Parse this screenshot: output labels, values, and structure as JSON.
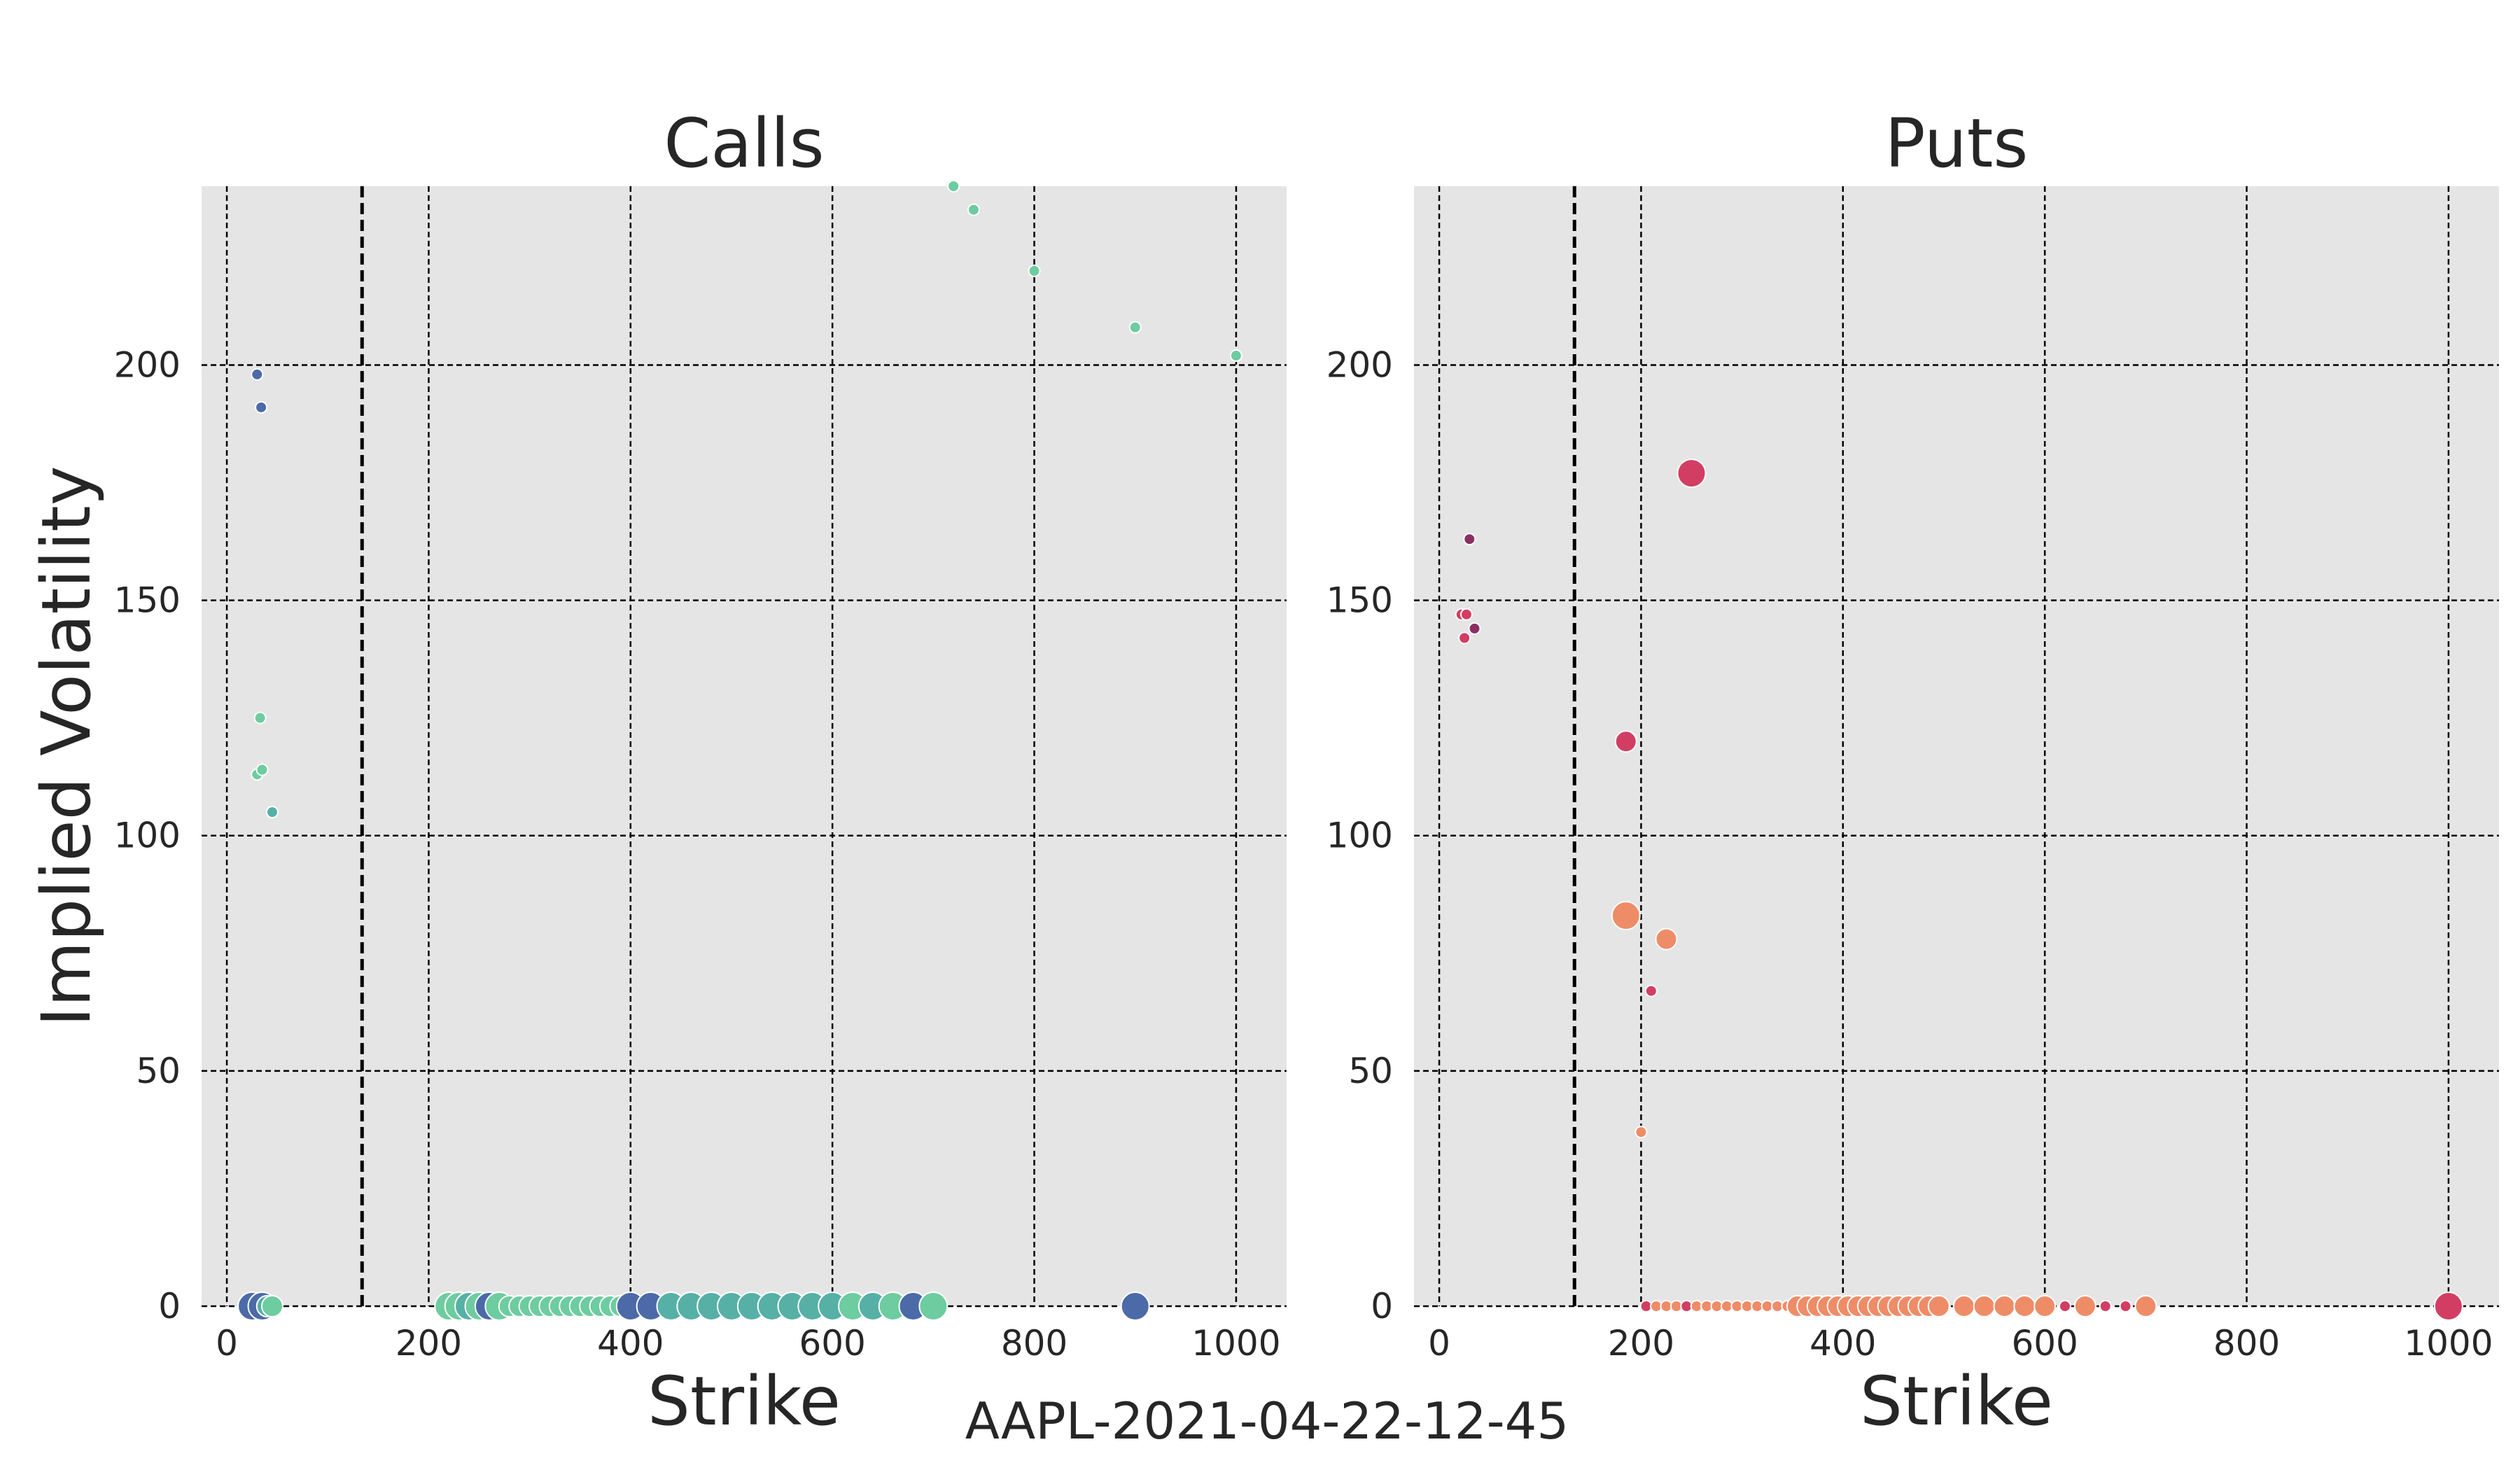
{
  "figure": {
    "caption": "AAPL-2021-04-22-12-45",
    "ylabel": "Implied Volatility",
    "spot_line_strike": 134
  },
  "chart_data": [
    {
      "type": "scatter",
      "title": "Calls",
      "xlabel": "Strike",
      "ylabel": "Implied Volatility",
      "xlim": [
        -25,
        1050
      ],
      "ylim": [
        0,
        238
      ],
      "xticks": [
        0,
        200,
        400,
        600,
        800,
        1000
      ],
      "yticks": [
        0,
        50,
        100,
        150,
        200
      ],
      "grid": true,
      "points": [
        {
          "x": 30,
          "y": 198,
          "size": 1,
          "color": "#4c6aa8"
        },
        {
          "x": 34,
          "y": 191,
          "size": 1,
          "color": "#4c6aa8"
        },
        {
          "x": 33,
          "y": 125,
          "size": 1,
          "color": "#6dcca0"
        },
        {
          "x": 30,
          "y": 113,
          "size": 1,
          "color": "#6dcca0"
        },
        {
          "x": 35,
          "y": 114,
          "size": 1,
          "color": "#6dcca0"
        },
        {
          "x": 45,
          "y": 105,
          "size": 1,
          "color": "#56b0a6"
        },
        {
          "x": 720,
          "y": 238,
          "size": 1,
          "color": "#6dcca0"
        },
        {
          "x": 740,
          "y": 233,
          "size": 1,
          "color": "#6dcca0"
        },
        {
          "x": 800,
          "y": 220,
          "size": 1,
          "color": "#6dcca0"
        },
        {
          "x": 900,
          "y": 208,
          "size": 1,
          "color": "#6dcca0"
        },
        {
          "x": 1000,
          "y": 202,
          "size": 1,
          "color": "#6dcca0"
        },
        {
          "x": 25,
          "y": 0,
          "size": 3,
          "color": "#4c6aa8"
        },
        {
          "x": 35,
          "y": 0,
          "size": 3,
          "color": "#4c6aa8"
        },
        {
          "x": 40,
          "y": 0,
          "size": 2,
          "color": "#56b0a6"
        },
        {
          "x": 45,
          "y": 0,
          "size": 2,
          "color": "#6dcca0"
        },
        {
          "x": 220,
          "y": 0,
          "size": 3,
          "color": "#6dcca0"
        },
        {
          "x": 230,
          "y": 0,
          "size": 3,
          "color": "#6dcca0"
        },
        {
          "x": 240,
          "y": 0,
          "size": 3,
          "color": "#56b0a6"
        },
        {
          "x": 250,
          "y": 0,
          "size": 3,
          "color": "#6dcca0"
        },
        {
          "x": 260,
          "y": 0,
          "size": 3,
          "color": "#4c6aa8"
        },
        {
          "x": 270,
          "y": 0,
          "size": 3,
          "color": "#6dcca0"
        },
        {
          "x": 280,
          "y": 0,
          "size": 2,
          "color": "#6dcca0"
        },
        {
          "x": 290,
          "y": 0,
          "size": 2,
          "color": "#6dcca0"
        },
        {
          "x": 300,
          "y": 0,
          "size": 2,
          "color": "#6dcca0"
        },
        {
          "x": 310,
          "y": 0,
          "size": 2,
          "color": "#6dcca0"
        },
        {
          "x": 320,
          "y": 0,
          "size": 2,
          "color": "#6dcca0"
        },
        {
          "x": 330,
          "y": 0,
          "size": 2,
          "color": "#6dcca0"
        },
        {
          "x": 340,
          "y": 0,
          "size": 2,
          "color": "#6dcca0"
        },
        {
          "x": 350,
          "y": 0,
          "size": 2,
          "color": "#6dcca0"
        },
        {
          "x": 360,
          "y": 0,
          "size": 2,
          "color": "#6dcca0"
        },
        {
          "x": 370,
          "y": 0,
          "size": 2,
          "color": "#6dcca0"
        },
        {
          "x": 380,
          "y": 0,
          "size": 2,
          "color": "#6dcca0"
        },
        {
          "x": 390,
          "y": 0,
          "size": 2,
          "color": "#6dcca0"
        },
        {
          "x": 400,
          "y": 0,
          "size": 3,
          "color": "#4c6aa8"
        },
        {
          "x": 420,
          "y": 0,
          "size": 3,
          "color": "#4c6aa8"
        },
        {
          "x": 440,
          "y": 0,
          "size": 3,
          "color": "#56b0a6"
        },
        {
          "x": 460,
          "y": 0,
          "size": 3,
          "color": "#56b0a6"
        },
        {
          "x": 480,
          "y": 0,
          "size": 3,
          "color": "#56b0a6"
        },
        {
          "x": 500,
          "y": 0,
          "size": 3,
          "color": "#56b0a6"
        },
        {
          "x": 520,
          "y": 0,
          "size": 3,
          "color": "#56b0a6"
        },
        {
          "x": 540,
          "y": 0,
          "size": 3,
          "color": "#56b0a6"
        },
        {
          "x": 560,
          "y": 0,
          "size": 3,
          "color": "#56b0a6"
        },
        {
          "x": 580,
          "y": 0,
          "size": 3,
          "color": "#56b0a6"
        },
        {
          "x": 600,
          "y": 0,
          "size": 3,
          "color": "#56b0a6"
        },
        {
          "x": 620,
          "y": 0,
          "size": 3,
          "color": "#6dcca0"
        },
        {
          "x": 640,
          "y": 0,
          "size": 3,
          "color": "#56b0a6"
        },
        {
          "x": 660,
          "y": 0,
          "size": 3,
          "color": "#6dcca0"
        },
        {
          "x": 680,
          "y": 0,
          "size": 3,
          "color": "#4c6aa8"
        },
        {
          "x": 700,
          "y": 0,
          "size": 3,
          "color": "#6dcca0"
        },
        {
          "x": 900,
          "y": 0,
          "size": 3,
          "color": "#4c6aa8"
        }
      ]
    },
    {
      "type": "scatter",
      "title": "Puts",
      "xlabel": "Strike",
      "ylabel": "",
      "xlim": [
        -25,
        1050
      ],
      "ylim": [
        0,
        238
      ],
      "xticks": [
        0,
        200,
        400,
        600,
        800,
        1000
      ],
      "yticks": [
        0,
        50,
        100,
        150,
        200
      ],
      "grid": true,
      "points": [
        {
          "x": 30,
          "y": 163,
          "size": 1,
          "color": "#8b2f62"
        },
        {
          "x": 22,
          "y": 147,
          "size": 1,
          "color": "#d23e63"
        },
        {
          "x": 27,
          "y": 147,
          "size": 1,
          "color": "#d23e63"
        },
        {
          "x": 35,
          "y": 144,
          "size": 1,
          "color": "#8b2f62"
        },
        {
          "x": 25,
          "y": 142,
          "size": 1,
          "color": "#d23e63"
        },
        {
          "x": 250,
          "y": 177,
          "size": 3,
          "color": "#d23e63"
        },
        {
          "x": 185,
          "y": 120,
          "size": 2,
          "color": "#d23e63"
        },
        {
          "x": 185,
          "y": 83,
          "size": 3,
          "color": "#ef8c68"
        },
        {
          "x": 225,
          "y": 78,
          "size": 2,
          "color": "#ef8c68"
        },
        {
          "x": 210,
          "y": 67,
          "size": 1,
          "color": "#d23e63"
        },
        {
          "x": 200,
          "y": 37,
          "size": 1,
          "color": "#ef8c68"
        },
        {
          "x": 205,
          "y": 0,
          "size": 1,
          "color": "#d23e63"
        },
        {
          "x": 215,
          "y": 0,
          "size": 1,
          "color": "#ef8c68"
        },
        {
          "x": 225,
          "y": 0,
          "size": 1,
          "color": "#ef8c68"
        },
        {
          "x": 235,
          "y": 0,
          "size": 1,
          "color": "#ef8c68"
        },
        {
          "x": 245,
          "y": 0,
          "size": 1,
          "color": "#d23e63"
        },
        {
          "x": 255,
          "y": 0,
          "size": 1,
          "color": "#ef8c68"
        },
        {
          "x": 265,
          "y": 0,
          "size": 1,
          "color": "#ef8c68"
        },
        {
          "x": 275,
          "y": 0,
          "size": 1,
          "color": "#ef8c68"
        },
        {
          "x": 285,
          "y": 0,
          "size": 1,
          "color": "#ef8c68"
        },
        {
          "x": 295,
          "y": 0,
          "size": 1,
          "color": "#ef8c68"
        },
        {
          "x": 305,
          "y": 0,
          "size": 1,
          "color": "#ef8c68"
        },
        {
          "x": 315,
          "y": 0,
          "size": 1,
          "color": "#ef8c68"
        },
        {
          "x": 325,
          "y": 0,
          "size": 1,
          "color": "#ef8c68"
        },
        {
          "x": 335,
          "y": 0,
          "size": 1,
          "color": "#ef8c68"
        },
        {
          "x": 345,
          "y": 0,
          "size": 1,
          "color": "#ef8c68"
        },
        {
          "x": 355,
          "y": 0,
          "size": 2,
          "color": "#ef8c68"
        },
        {
          "x": 365,
          "y": 0,
          "size": 2,
          "color": "#ef8c68"
        },
        {
          "x": 375,
          "y": 0,
          "size": 2,
          "color": "#ef8c68"
        },
        {
          "x": 385,
          "y": 0,
          "size": 2,
          "color": "#ef8c68"
        },
        {
          "x": 395,
          "y": 0,
          "size": 2,
          "color": "#ef8c68"
        },
        {
          "x": 405,
          "y": 0,
          "size": 2,
          "color": "#ef8c68"
        },
        {
          "x": 415,
          "y": 0,
          "size": 2,
          "color": "#ef8c68"
        },
        {
          "x": 425,
          "y": 0,
          "size": 2,
          "color": "#ef8c68"
        },
        {
          "x": 435,
          "y": 0,
          "size": 2,
          "color": "#ef8c68"
        },
        {
          "x": 445,
          "y": 0,
          "size": 2,
          "color": "#ef8c68"
        },
        {
          "x": 455,
          "y": 0,
          "size": 2,
          "color": "#ef8c68"
        },
        {
          "x": 465,
          "y": 0,
          "size": 2,
          "color": "#ef8c68"
        },
        {
          "x": 475,
          "y": 0,
          "size": 2,
          "color": "#ef8c68"
        },
        {
          "x": 485,
          "y": 0,
          "size": 2,
          "color": "#ef8c68"
        },
        {
          "x": 495,
          "y": 0,
          "size": 2,
          "color": "#ef8c68"
        },
        {
          "x": 520,
          "y": 0,
          "size": 2,
          "color": "#ef8c68"
        },
        {
          "x": 540,
          "y": 0,
          "size": 2,
          "color": "#ef8c68"
        },
        {
          "x": 560,
          "y": 0,
          "size": 2,
          "color": "#ef8c68"
        },
        {
          "x": 580,
          "y": 0,
          "size": 2,
          "color": "#ef8c68"
        },
        {
          "x": 600,
          "y": 0,
          "size": 2,
          "color": "#ef8c68"
        },
        {
          "x": 620,
          "y": 0,
          "size": 1,
          "color": "#d23e63"
        },
        {
          "x": 640,
          "y": 0,
          "size": 2,
          "color": "#ef8c68"
        },
        {
          "x": 660,
          "y": 0,
          "size": 1,
          "color": "#d23e63"
        },
        {
          "x": 680,
          "y": 0,
          "size": 1,
          "color": "#d23e63"
        },
        {
          "x": 700,
          "y": 0,
          "size": 2,
          "color": "#ef8c68"
        },
        {
          "x": 1000,
          "y": 0,
          "size": 3,
          "color": "#d23e63"
        }
      ]
    }
  ]
}
